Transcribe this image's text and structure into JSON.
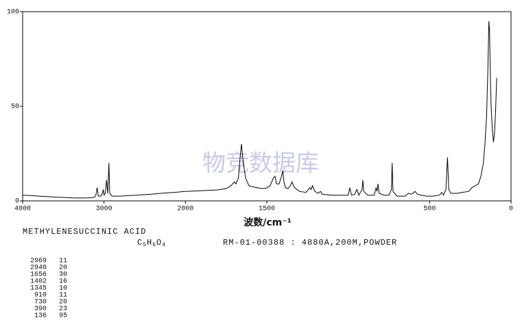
{
  "chart_data": {
    "type": "line",
    "watermark": "物竞数据库",
    "xlabel": "波数/cm⁻¹",
    "xlim": [
      4000,
      0
    ],
    "ylim": [
      0,
      100
    ],
    "xticks": [
      4000,
      3000,
      2000,
      1500,
      500,
      0
    ],
    "yticks": [
      0,
      50,
      100
    ],
    "series": [
      {
        "color": "#000000",
        "x": [
          4000,
          3900,
          3800,
          3700,
          3600,
          3500,
          3400,
          3300,
          3200,
          3120,
          3100,
          3085,
          3070,
          3040,
          3020,
          3010,
          3000,
          2985,
          2969,
          2955,
          2940,
          2930,
          2900,
          2800,
          2700,
          2600,
          2500,
          2400,
          2300,
          2200,
          2100,
          2000,
          1900,
          1800,
          1750,
          1720,
          1700,
          1690,
          1675,
          1665,
          1656,
          1645,
          1630,
          1610,
          1590,
          1560,
          1530,
          1500,
          1480,
          1460,
          1450,
          1440,
          1425,
          1410,
          1402,
          1395,
          1385,
          1370,
          1355,
          1345,
          1330,
          1300,
          1260,
          1235,
          1228,
          1220,
          1205,
          1185,
          1170,
          1160,
          1100,
          1050,
          1000,
          990,
          980,
          960,
          947,
          935,
          915,
          910,
          905,
          880,
          840,
          829,
          823,
          817,
          810,
          780,
          750,
          735,
          730,
          725,
          700,
          650,
          630,
          610,
          590,
          575,
          550,
          520,
          480,
          440,
          425,
          415,
          400,
          390,
          382,
          370,
          330,
          300,
          260,
          240,
          220,
          200,
          185,
          170,
          160,
          150,
          142,
          136,
          132,
          128,
          122,
          115,
          108,
          102,
          96,
          92,
          88
        ],
        "values": [
          3,
          2.8,
          2.5,
          2.3,
          2,
          1.8,
          1.6,
          1.5,
          1.6,
          1.8,
          3,
          7,
          2.5,
          2.5,
          4,
          6,
          3,
          4,
          11,
          4,
          20,
          4,
          2.5,
          2.5,
          2.8,
          3,
          3.3,
          3.6,
          4,
          4.3,
          4.6,
          5,
          5.4,
          5.8,
          6.5,
          8,
          10,
          9,
          12,
          22,
          30,
          20,
          12,
          8,
          7.5,
          7,
          6.5,
          6.8,
          8,
          12,
          13,
          9,
          9,
          13,
          16,
          10,
          7,
          6.5,
          8,
          10,
          7,
          5,
          4.5,
          7,
          6,
          8,
          5,
          4,
          5,
          3.5,
          3,
          3,
          3,
          7,
          3,
          3.5,
          6,
          3,
          6,
          11,
          5,
          3,
          3,
          7,
          5,
          9,
          4,
          3,
          3,
          6,
          20,
          5,
          2.5,
          2.5,
          4,
          3.5,
          5,
          3.5,
          3,
          2.5,
          2.5,
          3,
          4.5,
          3,
          6,
          23,
          6,
          4,
          4,
          4.5,
          5,
          7,
          8,
          9,
          13,
          20,
          30,
          45,
          70,
          95,
          90,
          70,
          50,
          38,
          31,
          35,
          45,
          55,
          65
        ]
      }
    ]
  },
  "compound": "METHYLENESUCCINIC ACID",
  "formula": "C5H6O4",
  "code": "RM-01-00388 : 4880A,200M,POWDER",
  "peaks": [
    [
      2969,
      11
    ],
    [
      2940,
      20
    ],
    [
      1656,
      30
    ],
    [
      1402,
      16
    ],
    [
      1345,
      10
    ],
    [
      910,
      11
    ],
    [
      730,
      20
    ],
    [
      390,
      23
    ],
    [
      136,
      95
    ]
  ]
}
